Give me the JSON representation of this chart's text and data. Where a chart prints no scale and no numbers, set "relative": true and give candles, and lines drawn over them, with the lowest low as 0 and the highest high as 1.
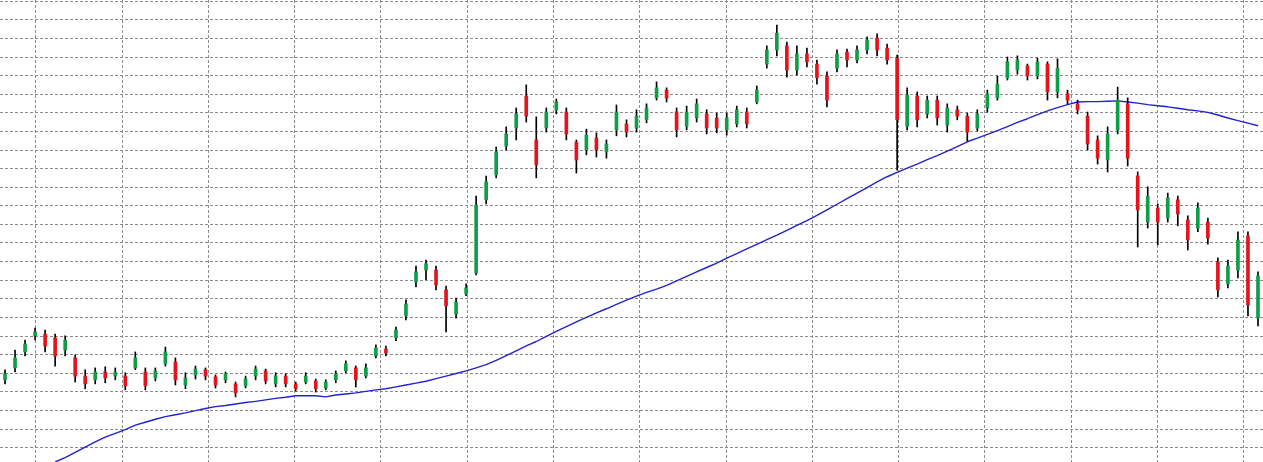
{
  "chart_data": {
    "type": "candlestick",
    "relative": true,
    "grid": true,
    "categories": [
      null,
      null,
      null,
      null,
      null,
      null,
      null,
      null,
      null,
      null,
      null,
      null,
      null,
      null,
      null,
      null,
      null,
      null,
      null,
      null,
      null,
      null,
      null,
      null,
      null,
      null,
      null,
      null,
      null,
      null,
      null,
      null,
      null,
      null,
      null,
      null,
      null,
      null,
      null,
      null,
      null,
      null,
      null,
      null,
      null,
      null,
      null,
      null,
      null,
      null,
      null,
      null,
      null,
      null,
      null,
      null,
      null,
      null,
      null,
      null,
      null,
      null,
      null,
      null,
      null,
      null,
      null,
      null,
      null,
      null,
      null,
      null,
      null,
      null,
      null,
      null,
      null,
      null,
      null,
      null,
      null,
      null,
      null,
      null,
      null,
      null,
      null,
      null,
      null,
      null,
      null,
      null,
      null,
      null,
      null,
      null,
      null,
      null,
      null,
      null,
      null,
      null,
      null,
      null,
      null,
      null,
      null,
      null,
      null,
      null,
      null,
      null,
      null,
      null,
      null,
      null,
      null,
      null,
      null,
      null,
      null,
      null,
      null,
      null,
      null,
      null
    ],
    "series": [
      {
        "color": "#000000",
        "colors": [
          "#0f9d48",
          "#0f9d48",
          "#0f9d48",
          "#0f9d48",
          "#e3141b",
          "#e3141b",
          "#0f9d48",
          "#e3141b",
          "#e3141b",
          "#0f9d48",
          "#e3141b",
          "#0f9d48",
          "#e3141b",
          "#0f9d48",
          "#e3141b",
          "#0f9d48",
          "#0f9d48",
          "#e3141b",
          "#0f9d48",
          "#0f9d48",
          "#e3141b",
          "#e3141b",
          "#0f9d48",
          "#e3141b",
          "#0f9d48",
          "#0f9d48",
          "#e3141b",
          "#0f9d48",
          "#e3141b",
          "#e3141b",
          "#0f9d48",
          "#e3141b",
          "#0f9d48",
          "#0f9d48",
          "#0f9d48",
          "#e3141b",
          "#0f9d48",
          "#0f9d48",
          "#e3141b",
          "#0f9d48",
          "#0f9d48",
          "#0f9d48",
          "#0f9d48",
          "#e3141b",
          "#e3141b",
          "#0f9d48",
          "#0f9d48",
          "#0f9d48",
          "#0f9d48",
          "#0f9d48",
          "#0f9d48",
          "#0f9d48",
          "#e3141b",
          "#e3141b",
          "#0f9d48",
          "#0f9d48",
          "#e3141b",
          "#e3141b",
          "#0f9d48",
          "#e3141b",
          "#0f9d48",
          "#0f9d48",
          "#e3141b",
          "#0f9d48",
          "#0f9d48",
          "#0f9d48",
          "#e3141b",
          "#e3141b",
          "#0f9d48",
          "#0f9d48",
          "#e3141b",
          "#e3141b",
          "#0f9d48",
          "#0f9d48",
          "#e3141b",
          "#0f9d48",
          "#0f9d48",
          "#0f9d48",
          "#e3141b",
          "#0f9d48",
          "#e3141b",
          "#e3141b",
          "#e3141b",
          "#0f9d48",
          "#e3141b",
          "#0f9d48",
          "#0f9d48",
          "#e3141b",
          "#e3141b",
          "#e3141b",
          "#0f9d48",
          "#e3141b",
          "#0f9d48",
          "#e3141b",
          "#0f9d48",
          "#e3141b",
          "#e3141b",
          "#0f9d48",
          "#0f9d48",
          "#0f9d48",
          "#0f9d48",
          "#0f9d48",
          "#e3141b",
          "#0f9d48",
          "#e3141b",
          "#0f9d48",
          "#e3141b",
          "#e3141b",
          "#e3141b",
          "#e3141b",
          "#0f9d48",
          "#0f9d48",
          "#e3141b",
          "#e3141b",
          "#0f9d48",
          "#e3141b",
          "#0f9d48",
          "#e3141b",
          "#e3141b",
          "#0f9d48",
          "#e3141b",
          "#e3141b",
          "#0f9d48",
          "#0f9d48",
          "#e3141b",
          "#0f9d48"
        ],
        "ohlc": [
          [
            0.046,
            0.073,
            0.035,
            0.062
          ],
          [
            0.078,
            0.126,
            0.067,
            0.105
          ],
          [
            0.121,
            0.153,
            0.11,
            0.142
          ],
          [
            0.164,
            0.185,
            0.153,
            0.175
          ],
          [
            0.169,
            0.18,
            0.121,
            0.137
          ],
          [
            0.159,
            0.169,
            0.083,
            0.11
          ],
          [
            0.126,
            0.164,
            0.11,
            0.153
          ],
          [
            0.105,
            0.113,
            0.04,
            0.056
          ],
          [
            0.056,
            0.073,
            0.022,
            0.035
          ],
          [
            0.046,
            0.078,
            0.035,
            0.067
          ],
          [
            0.067,
            0.081,
            0.038,
            0.051
          ],
          [
            0.056,
            0.078,
            0.046,
            0.067
          ],
          [
            0.056,
            0.065,
            0.019,
            0.03
          ],
          [
            0.078,
            0.121,
            0.073,
            0.105
          ],
          [
            0.067,
            0.078,
            0.019,
            0.03
          ],
          [
            0.051,
            0.078,
            0.043,
            0.07
          ],
          [
            0.089,
            0.134,
            0.083,
            0.121
          ],
          [
            0.094,
            0.105,
            0.032,
            0.046
          ],
          [
            0.032,
            0.065,
            0.022,
            0.051
          ],
          [
            0.059,
            0.083,
            0.048,
            0.075
          ],
          [
            0.073,
            0.078,
            0.046,
            0.056
          ],
          [
            0.054,
            0.059,
            0.024,
            0.032
          ],
          [
            0.046,
            0.067,
            0.038,
            0.062
          ],
          [
            0.035,
            0.04,
            0,
            0.011
          ],
          [
            0.03,
            0.056,
            0.024,
            0.048
          ],
          [
            0.056,
            0.083,
            0.046,
            0.075
          ],
          [
            0.07,
            0.075,
            0.035,
            0.043
          ],
          [
            0.035,
            0.065,
            0.027,
            0.056
          ],
          [
            0.056,
            0.062,
            0.027,
            0.035
          ],
          [
            0.035,
            0.04,
            0.016,
            0.022
          ],
          [
            0.04,
            0.065,
            0.035,
            0.056
          ],
          [
            0.043,
            0.048,
            0.013,
            0.022
          ],
          [
            0.024,
            0.046,
            0.019,
            0.04
          ],
          [
            0.046,
            0.07,
            0.038,
            0.062
          ],
          [
            0.07,
            0.097,
            0.065,
            0.089
          ],
          [
            0.078,
            0.083,
            0.027,
            0.046
          ],
          [
            0.056,
            0.089,
            0.051,
            0.078
          ],
          [
            0.11,
            0.14,
            0.105,
            0.132
          ],
          [
            0.129,
            0.137,
            0.11,
            0.118
          ],
          [
            0.159,
            0.188,
            0.151,
            0.18
          ],
          [
            0.218,
            0.261,
            0.207,
            0.25
          ],
          [
            0.309,
            0.352,
            0.296,
            0.336
          ],
          [
            0.341,
            0.368,
            0.315,
            0.358
          ],
          [
            0.341,
            0.352,
            0.288,
            0.301
          ],
          [
            0.288,
            0.298,
            0.175,
            0.245
          ],
          [
            0.223,
            0.266,
            0.212,
            0.255
          ],
          [
            0.277,
            0.304,
            0.272,
            0.293
          ],
          [
            0.333,
            0.54,
            0.328,
            0.516
          ],
          [
            0.53,
            0.594,
            0.519,
            0.578
          ],
          [
            0.597,
            0.672,
            0.589,
            0.659
          ],
          [
            0.675,
            0.726,
            0.664,
            0.707
          ],
          [
            0.723,
            0.777,
            0.691,
            0.761
          ],
          [
            0.809,
            0.839,
            0.739,
            0.755
          ],
          [
            0.691,
            0.753,
            0.589,
            0.624
          ],
          [
            0.723,
            0.777,
            0.712,
            0.766
          ],
          [
            0.772,
            0.801,
            0.761,
            0.793
          ],
          [
            0.766,
            0.777,
            0.691,
            0.707
          ],
          [
            0.685,
            0.691,
            0.602,
            0.637
          ],
          [
            0.664,
            0.72,
            0.651,
            0.704
          ],
          [
            0.696,
            0.71,
            0.645,
            0.664
          ],
          [
            0.659,
            0.691,
            0.642,
            0.68
          ],
          [
            0.718,
            0.785,
            0.702,
            0.766
          ],
          [
            0.734,
            0.745,
            0.699,
            0.712
          ],
          [
            0.723,
            0.772,
            0.712,
            0.755
          ],
          [
            0.745,
            0.788,
            0.737,
            0.777
          ],
          [
            0.804,
            0.847,
            0.798,
            0.831
          ],
          [
            0.825,
            0.831,
            0.793,
            0.804
          ],
          [
            0.766,
            0.777,
            0.699,
            0.718
          ],
          [
            0.728,
            0.782,
            0.718,
            0.766
          ],
          [
            0.75,
            0.801,
            0.739,
            0.788
          ],
          [
            0.761,
            0.772,
            0.707,
            0.723
          ],
          [
            0.75,
            0.763,
            0.71,
            0.723
          ],
          [
            0.718,
            0.763,
            0.704,
            0.75
          ],
          [
            0.734,
            0.782,
            0.726,
            0.772
          ],
          [
            0.766,
            0.777,
            0.723,
            0.734
          ],
          [
            0.793,
            0.836,
            0.788,
            0.825
          ],
          [
            0.895,
            0.944,
            0.884,
            0.933
          ],
          [
            0.933,
            1,
            0.917,
            0.978
          ],
          [
            0.944,
            0.954,
            0.86,
            0.879
          ],
          [
            0.879,
            0.944,
            0.866,
            0.922
          ],
          [
            0.922,
            0.938,
            0.887,
            0.901
          ],
          [
            0.895,
            0.906,
            0.841,
            0.858
          ],
          [
            0.863,
            0.874,
            0.78,
            0.798
          ],
          [
            0.884,
            0.933,
            0.874,
            0.922
          ],
          [
            0.927,
            0.935,
            0.887,
            0.906
          ],
          [
            0.906,
            0.944,
            0.898,
            0.933
          ],
          [
            0.933,
            0.968,
            0.922,
            0.96
          ],
          [
            0.965,
            0.976,
            0.917,
            0.933
          ],
          [
            0.938,
            0.949,
            0.895,
            0.906
          ],
          [
            0.911,
            0.919,
            0.61,
            0.745
          ],
          [
            0.728,
            0.831,
            0.718,
            0.812
          ],
          [
            0.809,
            0.82,
            0.726,
            0.745
          ],
          [
            0.761,
            0.809,
            0.75,
            0.798
          ],
          [
            0.798,
            0.809,
            0.731,
            0.75
          ],
          [
            0.731,
            0.788,
            0.712,
            0.777
          ],
          [
            0.772,
            0.782,
            0.745,
            0.755
          ],
          [
            0.755,
            0.763,
            0.688,
            0.712
          ],
          [
            0.723,
            0.772,
            0.715,
            0.761
          ],
          [
            0.777,
            0.825,
            0.766,
            0.815
          ],
          [
            0.804,
            0.863,
            0.798,
            0.841
          ],
          [
            0.858,
            0.914,
            0.852,
            0.901
          ],
          [
            0.879,
            0.917,
            0.868,
            0.906
          ],
          [
            0.89,
            0.895,
            0.852,
            0.863
          ],
          [
            0.863,
            0.911,
            0.855,
            0.901
          ],
          [
            0.895,
            0.901,
            0.798,
            0.82
          ],
          [
            0.82,
            0.909,
            0.804,
            0.884
          ],
          [
            0.815,
            0.825,
            0.788,
            0.798
          ],
          [
            0.788,
            0.798,
            0.761,
            0.772
          ],
          [
            0.755,
            0.766,
            0.664,
            0.68
          ],
          [
            0.691,
            0.702,
            0.626,
            0.642
          ],
          [
            0.637,
            0.726,
            0.605,
            0.707
          ],
          [
            0.718,
            0.833,
            0.707,
            0.798
          ],
          [
            0.788,
            0.804,
            0.621,
            0.642
          ],
          [
            0.594,
            0.605,
            0.403,
            0.503
          ],
          [
            0.47,
            0.565,
            0.454,
            0.54
          ],
          [
            0.508,
            0.519,
            0.409,
            0.47
          ],
          [
            0.481,
            0.548,
            0.47,
            0.535
          ],
          [
            0.53,
            0.54,
            0.46,
            0.492
          ],
          [
            0.476,
            0.487,
            0.395,
            0.422
          ],
          [
            0.454,
            0.522,
            0.444,
            0.508
          ],
          [
            0.47,
            0.481,
            0.411,
            0.427
          ],
          [
            0.363,
            0.374,
            0.269,
            0.288
          ],
          [
            0.304,
            0.368,
            0.293,
            0.352
          ],
          [
            0.341,
            0.444,
            0.32,
            0.422
          ],
          [
            0.433,
            0.444,
            0.218,
            0.247
          ],
          [
            0.212,
            0.336,
            0.191,
            0.325
          ]
        ]
      },
      {
        "type": "line",
        "color": "#2222cc",
        "values": [
          null,
          null,
          null,
          null,
          null,
          -0.175,
          -0.163,
          -0.149,
          -0.135,
          -0.121,
          -0.108,
          -0.098,
          -0.088,
          -0.076,
          -0.068,
          -0.06,
          -0.053,
          -0.048,
          -0.043,
          -0.037,
          -0.031,
          -0.026,
          -0.023,
          -0.019,
          -0.015,
          -0.012,
          -0.008,
          -0.004,
          -0.001,
          0.003,
          0.003,
          0.003,
          0,
          0.005,
          0.008,
          0.011,
          0.015,
          0.019,
          0.022,
          0.027,
          0.032,
          0.037,
          0.042,
          0.049,
          0.056,
          0.063,
          0.07,
          0.078,
          0.087,
          0.098,
          0.111,
          0.124,
          0.137,
          0.149,
          0.163,
          0.176,
          0.189,
          0.202,
          0.214,
          0.226,
          0.237,
          0.249,
          0.26,
          0.271,
          0.281,
          0.29,
          0.3,
          0.312,
          0.324,
          0.336,
          0.348,
          0.36,
          0.373,
          0.385,
          0.398,
          0.41,
          0.423,
          0.435,
          0.448,
          0.461,
          0.474,
          0.488,
          0.503,
          0.518,
          0.533,
          0.548,
          0.563,
          0.578,
          0.592,
          0.604,
          0.615,
          0.626,
          0.638,
          0.649,
          0.661,
          0.673,
          0.686,
          0.696,
          0.706,
          0.716,
          0.727,
          0.738,
          0.748,
          0.759,
          0.769,
          0.778,
          0.786,
          0.793,
          0.794,
          0.794,
          0.795,
          0.796,
          0.793,
          0.79,
          0.786,
          0.783,
          0.78,
          0.776,
          0.772,
          0.769,
          0.765,
          0.758,
          0.75,
          0.743,
          0.736,
          0.729
        ]
      }
    ]
  }
}
